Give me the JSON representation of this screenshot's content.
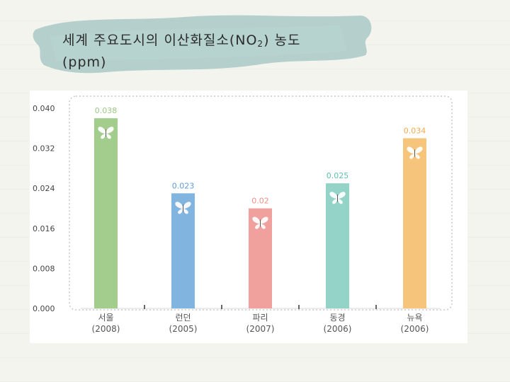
{
  "title": {
    "main_before": "세계 주요도시의 이산화질소(NO",
    "main_sub": "2",
    "main_after": ") 농도",
    "unit": "(ppm)"
  },
  "chart_data": {
    "type": "bar",
    "categories": [
      "서울",
      "런던",
      "파리",
      "동경",
      "뉴욕"
    ],
    "years": [
      "(2008)",
      "(2005)",
      "(2007)",
      "(2006)",
      "(2006)"
    ],
    "values": [
      0.038,
      0.023,
      0.02,
      0.025,
      0.034
    ],
    "value_labels": [
      "0.038",
      "0.023",
      "0.02",
      "0.025",
      "0.034"
    ],
    "ylim": [
      0,
      0.04
    ],
    "yticks": [
      0.0,
      0.008,
      0.016,
      0.024,
      0.032,
      0.04
    ],
    "ytick_labels": [
      "0.000",
      "0.008",
      "0.016",
      "0.024",
      "0.032",
      "0.040"
    ],
    "colors": [
      "#a3cd8d",
      "#82b4e0",
      "#f0a19e",
      "#93d3c8",
      "#f6c57b"
    ],
    "label_colors": [
      "#9cc784",
      "#5e9bd6",
      "#ef8f8a",
      "#5fbfb3",
      "#f0a94e"
    ],
    "grid": false,
    "marker_icon": "butterfly-icon"
  }
}
